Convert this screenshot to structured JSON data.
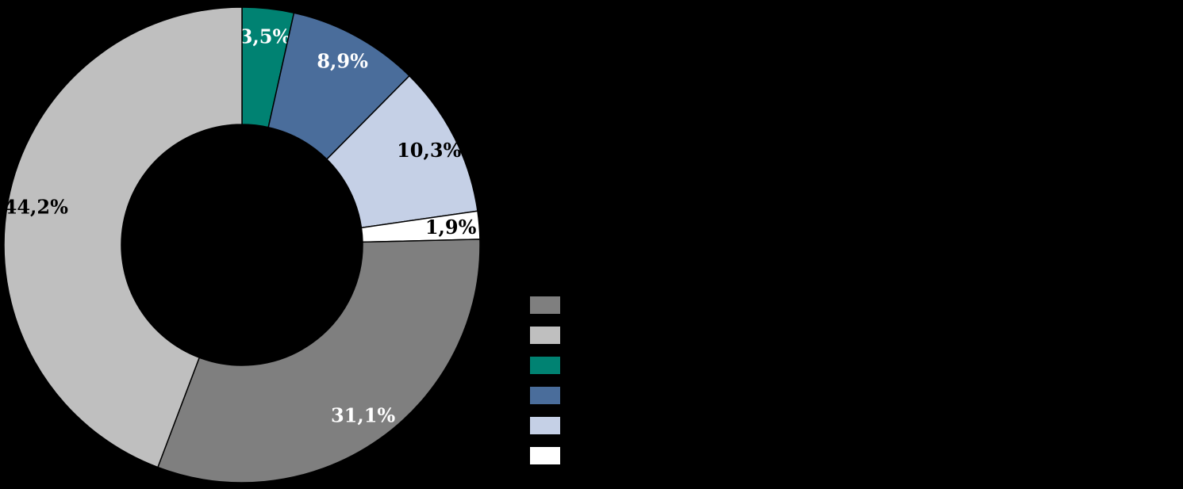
{
  "chart_data": {
    "type": "pie",
    "subtype": "donut",
    "title": "",
    "background_color": "#000000",
    "direction": "clockwise",
    "start_angle_deg": 0,
    "label_decimal_style": "comma",
    "slices": [
      {
        "label": "",
        "value": 3.5,
        "display": "3,5%",
        "color": "#008272",
        "label_color": "#ffffff"
      },
      {
        "label": "",
        "value": 8.9,
        "display": "8,9%",
        "color": "#4a6d9b",
        "label_color": "#ffffff"
      },
      {
        "label": "",
        "value": 10.3,
        "display": "10,3%",
        "color": "#c5d0e6",
        "label_color": "#000000"
      },
      {
        "label": "",
        "value": 1.9,
        "display": "1,9%",
        "color": "#ffffff",
        "label_color": "#000000"
      },
      {
        "label": "",
        "value": 31.1,
        "display": "31,1%",
        "color": "#7f7f7f",
        "label_color": "#ffffff"
      },
      {
        "label": "",
        "value": 44.2,
        "display": "44,2%",
        "color": "#bfbfbf",
        "label_color": "#000000"
      }
    ],
    "legend": {
      "position": "right",
      "items": [
        {
          "label": "",
          "color": "#7f7f7f"
        },
        {
          "label": "",
          "color": "#bfbfbf"
        },
        {
          "label": "",
          "color": "#008272"
        },
        {
          "label": "",
          "color": "#4a6d9b"
        },
        {
          "label": "",
          "color": "#c5d0e6"
        },
        {
          "label": "",
          "color": "#ffffff"
        }
      ]
    }
  }
}
